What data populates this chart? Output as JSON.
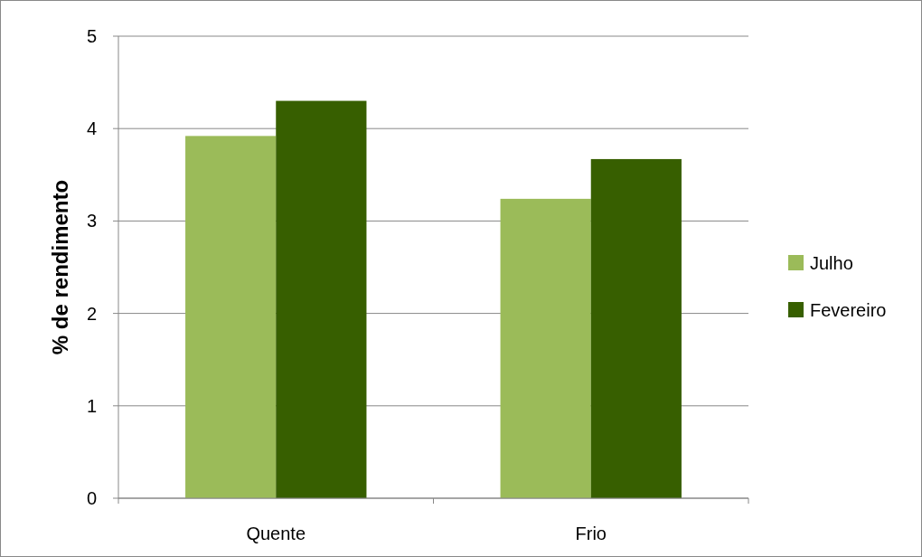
{
  "chart_data": {
    "type": "bar",
    "ylabel": "% de rendimento",
    "categories": [
      "Quente",
      "Frio"
    ],
    "series": [
      {
        "name": "Julho",
        "color": "#9bbb59",
        "values": [
          3.92,
          3.24
        ]
      },
      {
        "name": "Fevereiro",
        "color": "#375f00",
        "values": [
          4.3,
          3.67
        ]
      }
    ],
    "ylim": [
      0,
      5
    ],
    "yticks": [
      0,
      1,
      2,
      3,
      4,
      5
    ],
    "grid": "y",
    "legend": "right"
  }
}
